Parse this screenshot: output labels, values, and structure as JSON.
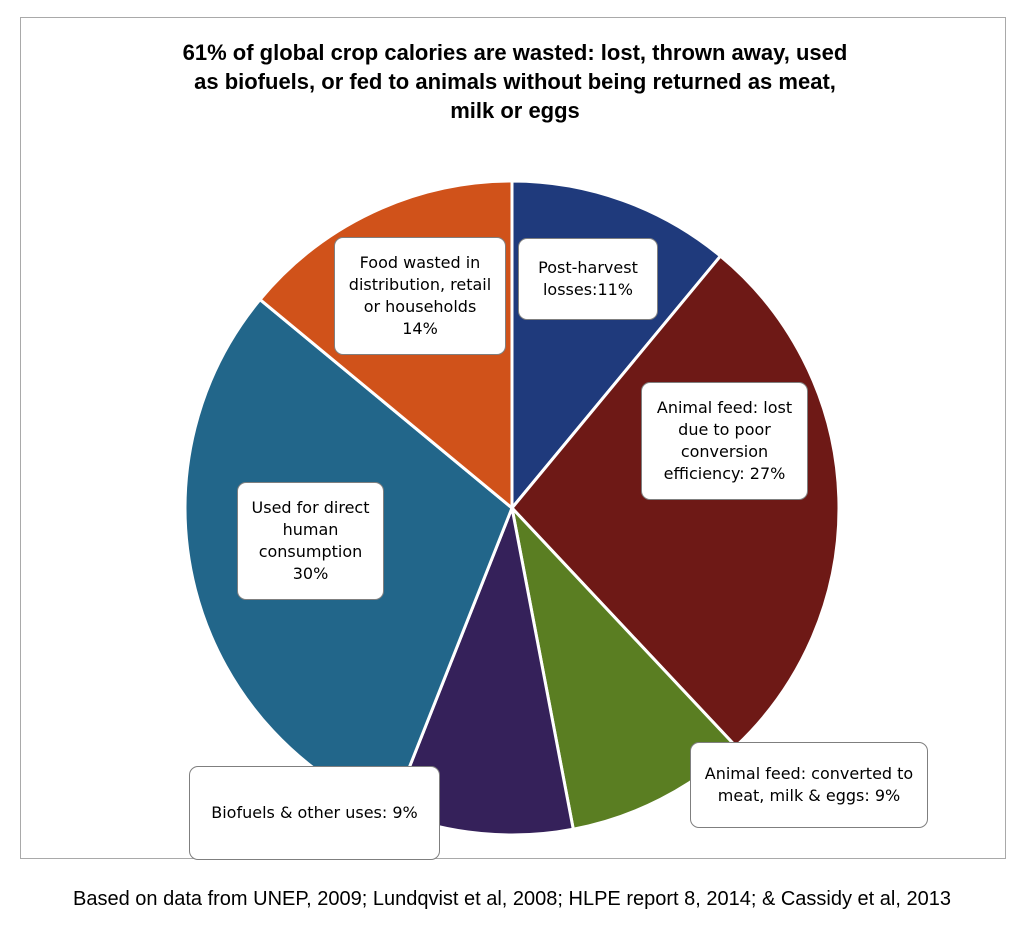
{
  "chart_data": {
    "type": "pie",
    "title": "61% of global crop calories are wasted: lost, thrown away, used\nas biofuels, or fed to animals without being returned as meat,\nmilk or eggs",
    "slices": [
      {
        "label": "Post-harvest\nlosses:11%",
        "value": 11,
        "color": "#1f3a7c"
      },
      {
        "label": "Animal feed: lost\ndue to poor\nconversion\nefficiency: 27%",
        "value": 27,
        "color": "#6e1916"
      },
      {
        "label": "Animal feed: converted to\nmeat, milk & eggs: 9%",
        "value": 9,
        "color": "#5a7e22"
      },
      {
        "label": "Biofuels & other uses: 9%",
        "value": 9,
        "color": "#35215a"
      },
      {
        "label": "Used for direct\nhuman\nconsumption\n30%",
        "value": 30,
        "color": "#22668a"
      },
      {
        "label": "Food wasted in\ndistribution, retail\nor households\n14%",
        "value": 14,
        "color": "#d0521a"
      }
    ]
  },
  "source": "Based on data from UNEP, 2009; Lundqvist et al, 2008; HLPE report 8, 2014; & Cassidy et al, 2013"
}
